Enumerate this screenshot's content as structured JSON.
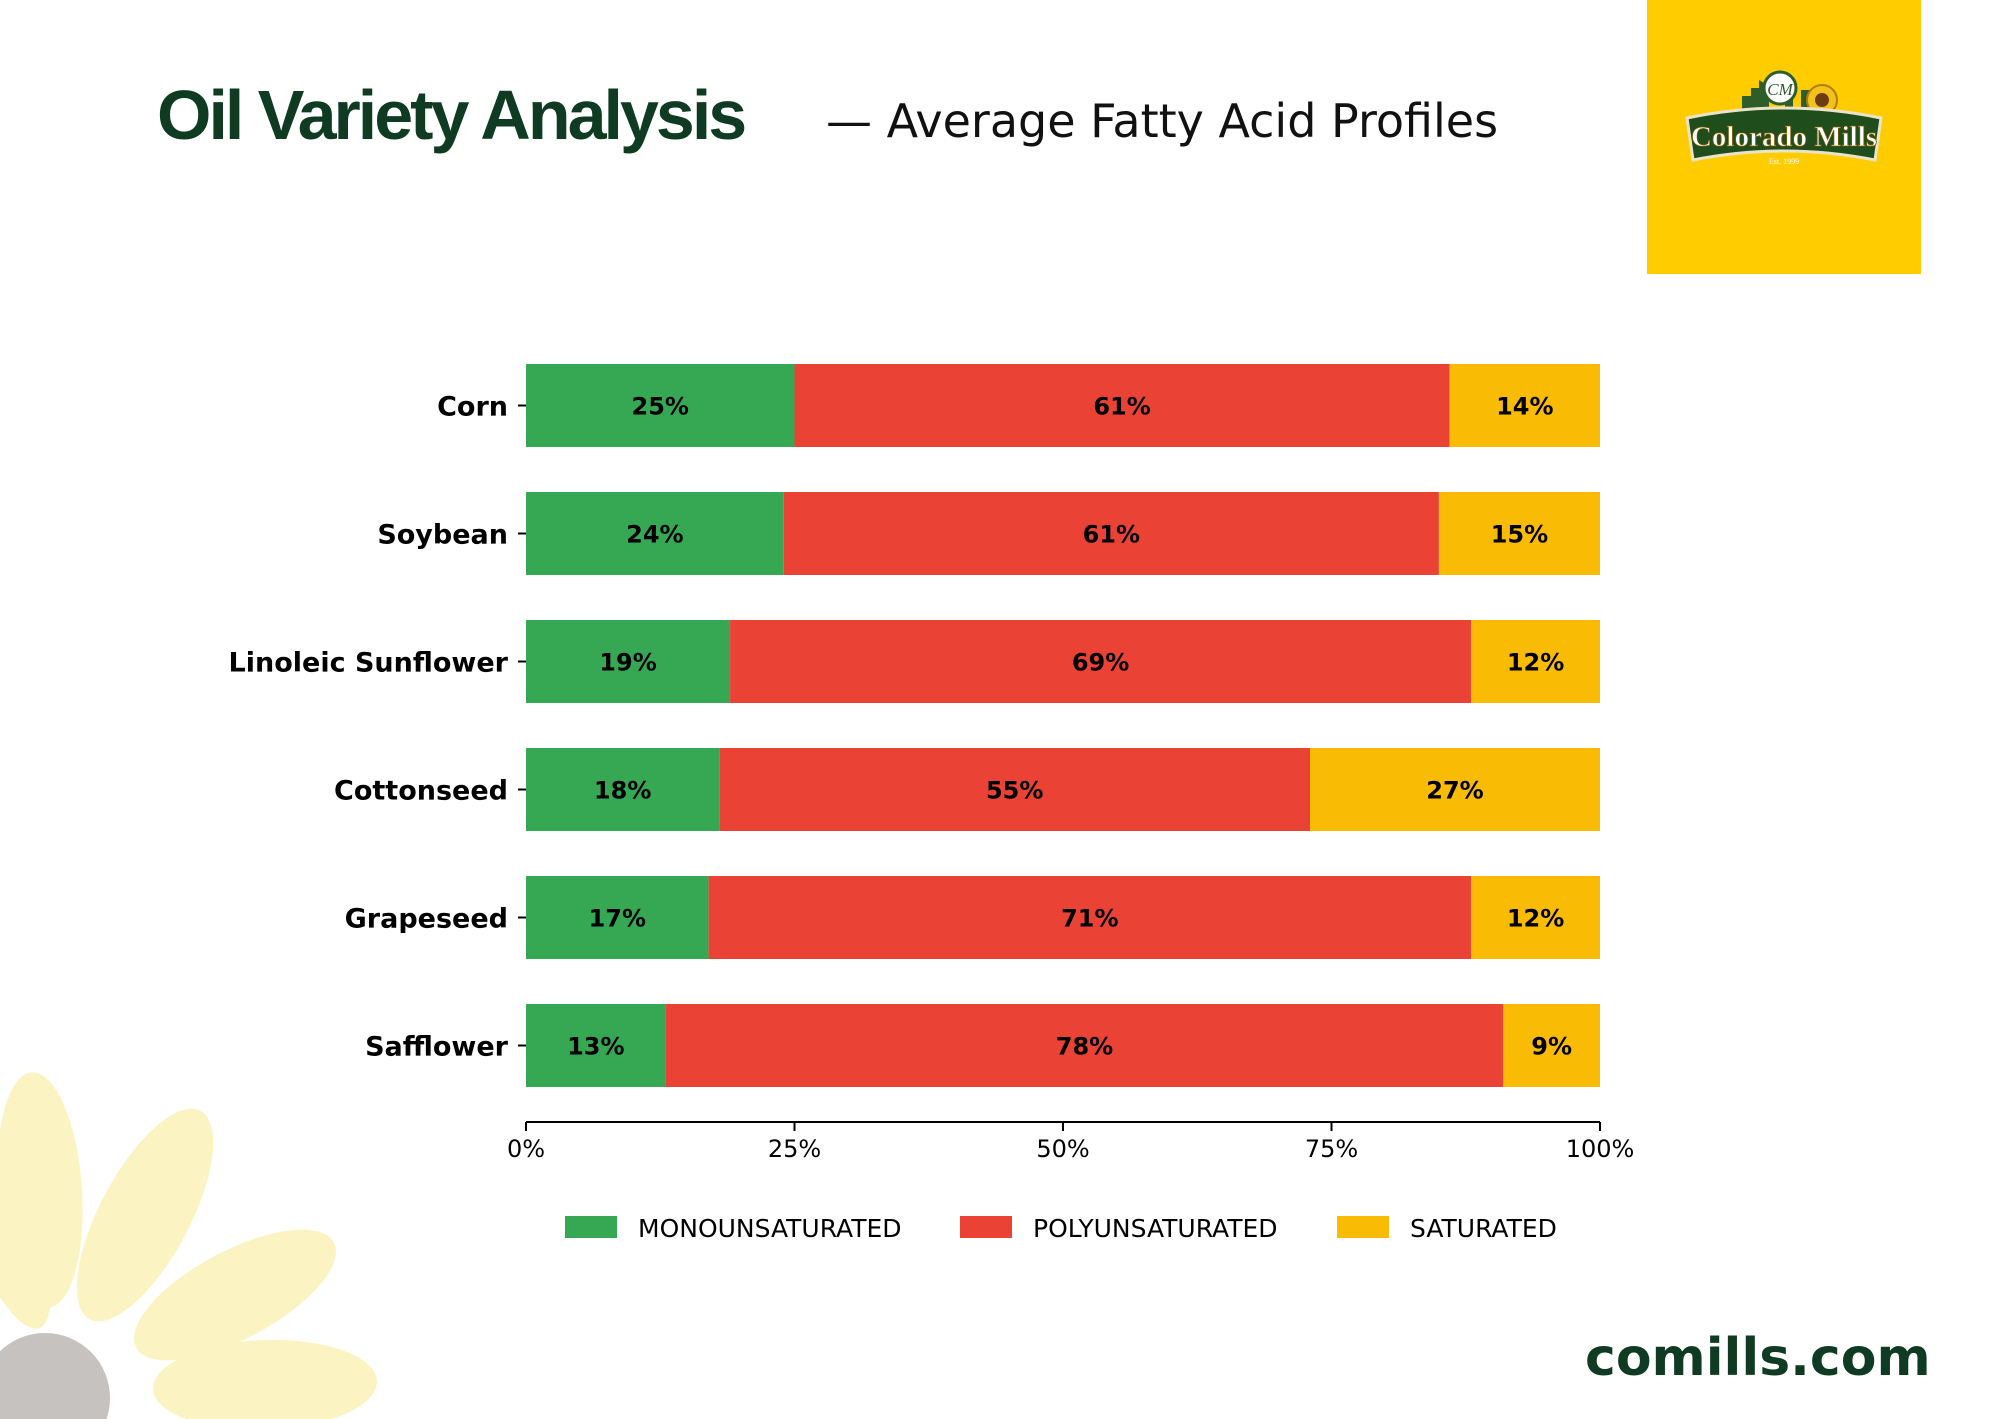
{
  "header": {
    "title": "Oil Variety Analysis",
    "subtitle": "— Average Fatty Acid Profiles"
  },
  "logo": {
    "brand": "Colorado Mills",
    "est": "Est. 1999",
    "monogram": "CM",
    "icon": "colorado-mills-logo",
    "background": "#ffcc00"
  },
  "footer": {
    "website": "comills.com"
  },
  "colors": {
    "monounsaturated": "#36a853",
    "polyunsaturated": "#ea4335",
    "saturated": "#f9bb04",
    "brand_dark": "#0f3b22"
  },
  "chart_data": {
    "type": "bar",
    "orientation": "horizontal",
    "stacked": true,
    "categories": [
      "Corn",
      "Soybean",
      "Linoleic Sunflower",
      "Cottonseed",
      "Grapeseed",
      "Safflower"
    ],
    "series": [
      {
        "name": "MONOUNSATURATED",
        "color": "#36a853",
        "values": [
          25,
          24,
          19,
          18,
          17,
          13
        ]
      },
      {
        "name": "POLYUNSATURATED",
        "color": "#ea4335",
        "values": [
          61,
          61,
          69,
          55,
          71,
          78
        ]
      },
      {
        "name": "SATURATED",
        "color": "#f9bb04",
        "values": [
          14,
          15,
          12,
          27,
          12,
          9
        ]
      }
    ],
    "xlim": [
      0,
      100
    ],
    "xticks": [
      "0%",
      "25%",
      "50%",
      "75%",
      "100%"
    ],
    "value_suffix": "%",
    "legend_position": "bottom",
    "grid": false
  }
}
